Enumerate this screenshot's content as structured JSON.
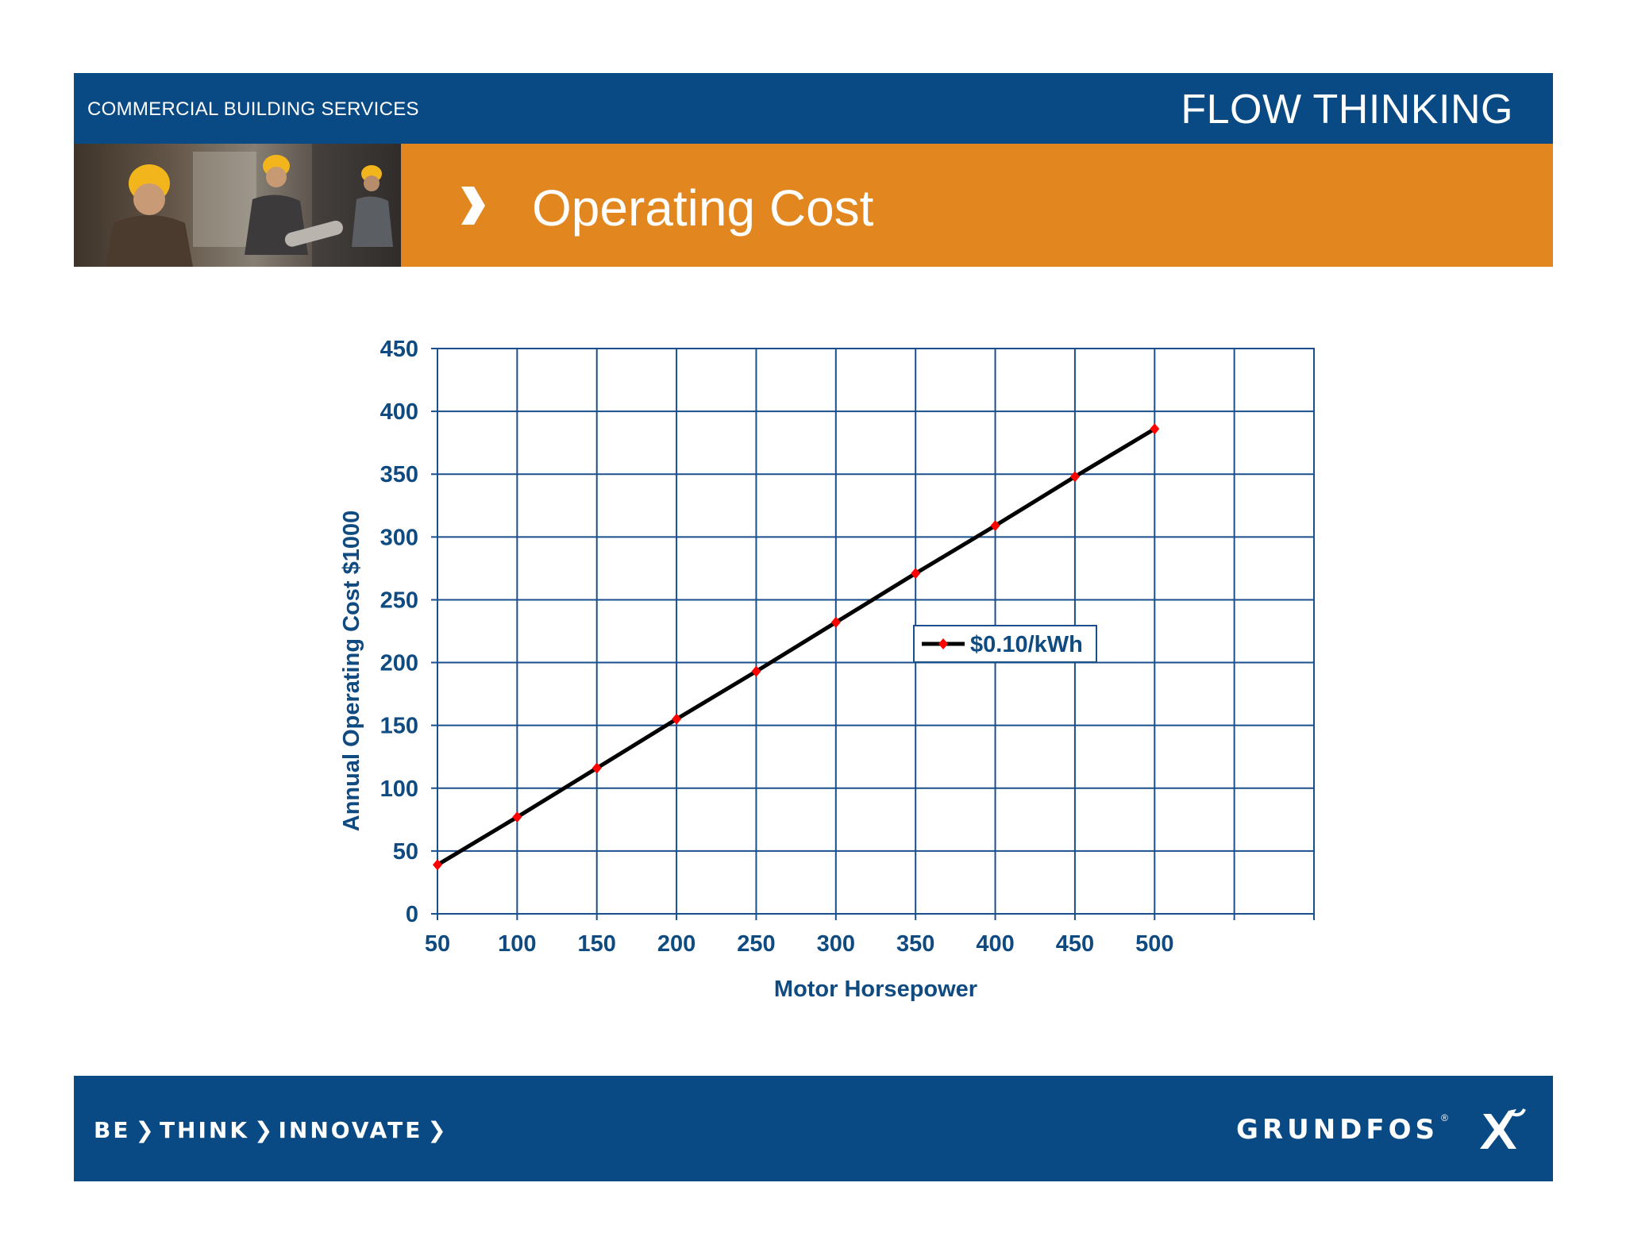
{
  "header": {
    "left_label": "COMMERCIAL BUILDING SERVICES",
    "right_label": "FLOW THINKING"
  },
  "title_band": {
    "title": "Operating Cost"
  },
  "footer": {
    "tagline": [
      "BE",
      "THINK",
      "INNOVATE"
    ],
    "logo_text": "GRUNDFOS",
    "logo_reg": "®"
  },
  "colors": {
    "brand_blue": "#0a4a84",
    "brand_orange": "#e28620",
    "grid": "#1a4f8c",
    "axis_text": "#0f4a80",
    "series_line": "#000000",
    "series_marker": "#ff0000"
  },
  "chart_data": {
    "type": "line",
    "title": "",
    "xlabel": "Motor Horsepower",
    "ylabel": "Annual Operating Cost  $1000",
    "x_ticks": [
      "50",
      "100",
      "150",
      "200",
      "250",
      "300",
      "350",
      "400",
      "450",
      "500"
    ],
    "y_ticks": [
      "0",
      "50",
      "100",
      "150",
      "200",
      "250",
      "300",
      "350",
      "400",
      "450"
    ],
    "xlim": [
      50,
      600
    ],
    "ylim": [
      0,
      450
    ],
    "grid": true,
    "legend_position": "center-right",
    "series": [
      {
        "name": "$0.10/kWh",
        "x": [
          50,
          100,
          150,
          200,
          250,
          300,
          350,
          400,
          450,
          500
        ],
        "y": [
          39,
          77,
          116,
          155,
          193,
          232,
          271,
          309,
          348,
          386
        ]
      }
    ]
  }
}
